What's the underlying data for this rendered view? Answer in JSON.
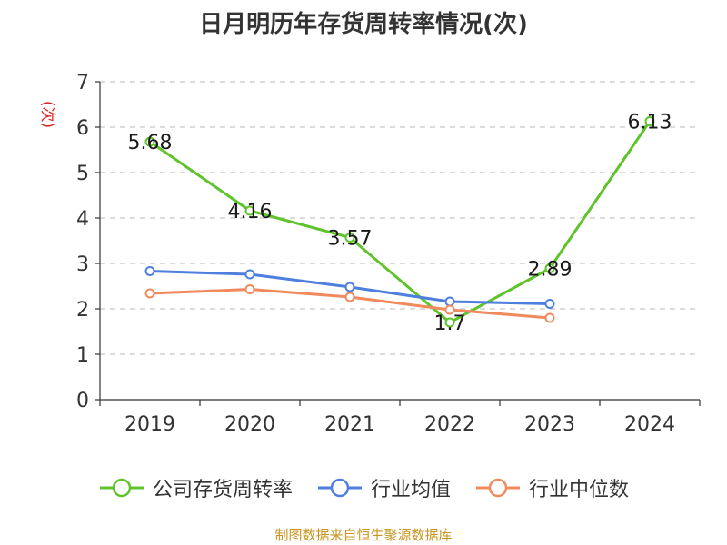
{
  "chart_data": {
    "type": "line",
    "title": "日月明历年存货周转率情况(次)",
    "ylabel": "(次)",
    "categories": [
      "2019",
      "2020",
      "2021",
      "2022",
      "2023",
      "2024"
    ],
    "ylim": [
      0,
      7
    ],
    "yticks": [
      0,
      1,
      2,
      3,
      4,
      5,
      6,
      7
    ],
    "grid": true,
    "legend_position": "bottom",
    "series": [
      {
        "name": "公司存货周转率",
        "color": "#5fc32b",
        "values": [
          5.68,
          4.16,
          3.57,
          1.7,
          2.89,
          6.13
        ],
        "data_labels": [
          "5.68",
          "4.16",
          "3.57",
          "1.7",
          "2.89",
          "6.13"
        ]
      },
      {
        "name": "行业均值",
        "color": "#4e7fde",
        "values": [
          2.83,
          2.76,
          2.48,
          2.16,
          2.11,
          null
        ]
      },
      {
        "name": "行业中位数",
        "color": "#f08a5d",
        "values": [
          2.34,
          2.43,
          2.26,
          1.98,
          1.8,
          null
        ]
      }
    ]
  },
  "source_text": "制图数据来自恒生聚源数据库"
}
